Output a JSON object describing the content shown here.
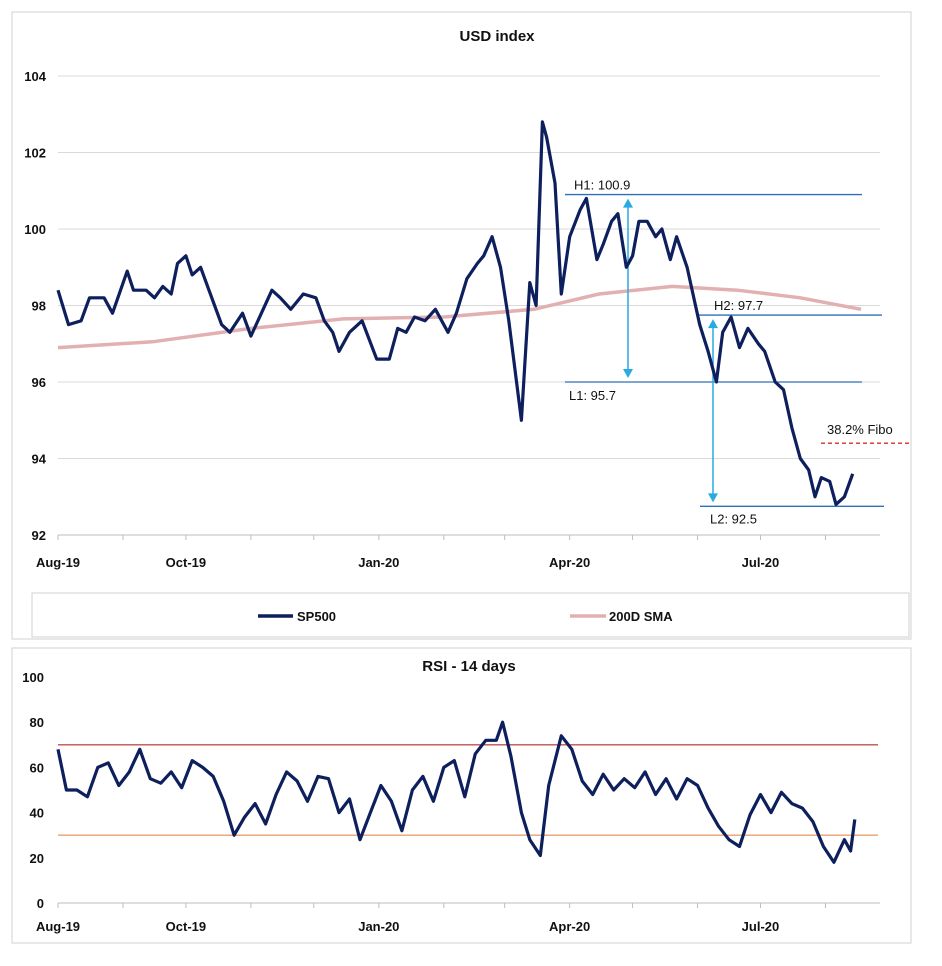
{
  "chart_data": [
    {
      "type": "line",
      "title": "USD index",
      "x_labels": [
        "Aug-19",
        "Oct-19",
        "Jan-20",
        "Apr-20",
        "Jul-20"
      ],
      "ylim": [
        92,
        104
      ],
      "y_ticks": [
        "92",
        "94",
        "96",
        "98",
        "100",
        "102",
        "104"
      ],
      "grid": true,
      "legend_position": "bottom",
      "series": [
        {
          "name": "SP500",
          "color": "#0d1f5c",
          "points": [
            [
              "2019-08-01",
              98.4
            ],
            [
              "2019-08-06",
              97.5
            ],
            [
              "2019-08-12",
              97.6
            ],
            [
              "2019-08-16",
              98.2
            ],
            [
              "2019-08-23",
              98.2
            ],
            [
              "2019-08-27",
              97.8
            ],
            [
              "2019-09-03",
              98.9
            ],
            [
              "2019-09-06",
              98.4
            ],
            [
              "2019-09-12",
              98.4
            ],
            [
              "2019-09-16",
              98.2
            ],
            [
              "2019-09-20",
              98.5
            ],
            [
              "2019-09-24",
              98.3
            ],
            [
              "2019-09-27",
              99.1
            ],
            [
              "2019-10-01",
              99.3
            ],
            [
              "2019-10-04",
              98.8
            ],
            [
              "2019-10-08",
              99.0
            ],
            [
              "2019-10-14",
              98.1
            ],
            [
              "2019-10-18",
              97.5
            ],
            [
              "2019-10-22",
              97.3
            ],
            [
              "2019-10-28",
              97.8
            ],
            [
              "2019-11-01",
              97.2
            ],
            [
              "2019-11-06",
              97.8
            ],
            [
              "2019-11-11",
              98.4
            ],
            [
              "2019-11-15",
              98.2
            ],
            [
              "2019-11-20",
              97.9
            ],
            [
              "2019-11-26",
              98.3
            ],
            [
              "2019-12-02",
              98.2
            ],
            [
              "2019-12-06",
              97.6
            ],
            [
              "2019-12-10",
              97.3
            ],
            [
              "2019-12-13",
              96.8
            ],
            [
              "2019-12-18",
              97.3
            ],
            [
              "2019-12-24",
              97.6
            ],
            [
              "2019-12-31",
              96.6
            ],
            [
              "2020-01-06",
              96.6
            ],
            [
              "2020-01-10",
              97.4
            ],
            [
              "2020-01-14",
              97.3
            ],
            [
              "2020-01-18",
              97.7
            ],
            [
              "2020-01-23",
              97.6
            ],
            [
              "2020-01-28",
              97.9
            ],
            [
              "2020-02-03",
              97.3
            ],
            [
              "2020-02-07",
              97.8
            ],
            [
              "2020-02-12",
              98.7
            ],
            [
              "2020-02-17",
              99.1
            ],
            [
              "2020-02-20",
              99.3
            ],
            [
              "2020-02-24",
              99.8
            ],
            [
              "2020-02-28",
              99.0
            ],
            [
              "2020-03-03",
              97.6
            ],
            [
              "2020-03-09",
              95.0
            ],
            [
              "2020-03-13",
              98.6
            ],
            [
              "2020-03-16",
              98.0
            ],
            [
              "2020-03-19",
              102.8
            ],
            [
              "2020-03-21",
              102.4
            ],
            [
              "2020-03-25",
              101.2
            ],
            [
              "2020-03-28",
              98.3
            ],
            [
              "2020-04-01",
              99.8
            ],
            [
              "2020-04-06",
              100.5
            ],
            [
              "2020-04-09",
              100.8
            ],
            [
              "2020-04-14",
              99.2
            ],
            [
              "2020-04-17",
              99.6
            ],
            [
              "2020-04-21",
              100.2
            ],
            [
              "2020-04-24",
              100.4
            ],
            [
              "2020-04-28",
              99.0
            ],
            [
              "2020-05-01",
              99.3
            ],
            [
              "2020-05-04",
              100.2
            ],
            [
              "2020-05-08",
              100.2
            ],
            [
              "2020-05-12",
              99.8
            ],
            [
              "2020-05-15",
              100.0
            ],
            [
              "2020-05-19",
              99.2
            ],
            [
              "2020-05-22",
              99.8
            ],
            [
              "2020-05-27",
              99.0
            ],
            [
              "2020-06-02",
              97.5
            ],
            [
              "2020-06-06",
              96.8
            ],
            [
              "2020-06-10",
              96.0
            ],
            [
              "2020-06-13",
              97.3
            ],
            [
              "2020-06-17",
              97.7
            ],
            [
              "2020-06-21",
              96.9
            ],
            [
              "2020-06-25",
              97.4
            ],
            [
              "2020-06-30",
              97.0
            ],
            [
              "2020-07-03",
              96.8
            ],
            [
              "2020-07-08",
              96.0
            ],
            [
              "2020-07-12",
              95.8
            ],
            [
              "2020-07-16",
              94.8
            ],
            [
              "2020-07-20",
              94.0
            ],
            [
              "2020-07-24",
              93.7
            ],
            [
              "2020-07-27",
              93.0
            ],
            [
              "2020-07-30",
              93.5
            ],
            [
              "2020-08-03",
              93.4
            ],
            [
              "2020-08-06",
              92.8
            ],
            [
              "2020-08-10",
              93.0
            ],
            [
              "2020-08-14",
              93.6
            ]
          ]
        },
        {
          "name": "200D SMA",
          "color": "#e2b0b0",
          "points": [
            [
              "2019-08-01",
              96.9
            ],
            [
              "2019-09-15",
              97.05
            ],
            [
              "2019-11-01",
              97.4
            ],
            [
              "2019-12-15",
              97.65
            ],
            [
              "2020-02-01",
              97.7
            ],
            [
              "2020-03-15",
              97.9
            ],
            [
              "2020-04-15",
              98.3
            ],
            [
              "2020-05-20",
              98.5
            ],
            [
              "2020-06-20",
              98.4
            ],
            [
              "2020-07-20",
              98.2
            ],
            [
              "2020-08-18",
              97.9
            ]
          ]
        }
      ],
      "annotations": [
        {
          "label": "H1: 100.9",
          "value": 100.9
        },
        {
          "label": "L1: 95.7",
          "value": 96.0
        },
        {
          "label": "H2: 97.7",
          "value": 97.75
        },
        {
          "label": "L2: 92.5",
          "value": 92.75
        },
        {
          "label": "38.2% Fibo",
          "value": 94.4
        }
      ]
    },
    {
      "type": "line",
      "title": "RSI - 14 days",
      "x_labels": [
        "Aug-19",
        "Oct-19",
        "Jan-20",
        "Apr-20",
        "Jul-20"
      ],
      "ylim": [
        0,
        100
      ],
      "y_ticks": [
        "0",
        "20",
        "40",
        "60",
        "80",
        "100"
      ],
      "grid": false,
      "reference_lines": [
        {
          "value": 70,
          "color": "#c0504d"
        },
        {
          "value": 30,
          "color": "#e8a070"
        }
      ],
      "series": [
        {
          "color": "#0d1f5c",
          "points": [
            [
              "2019-08-01",
              68
            ],
            [
              "2019-08-05",
              50
            ],
            [
              "2019-08-10",
              50
            ],
            [
              "2019-08-15",
              47
            ],
            [
              "2019-08-20",
              60
            ],
            [
              "2019-08-25",
              62
            ],
            [
              "2019-08-30",
              52
            ],
            [
              "2019-09-04",
              58
            ],
            [
              "2019-09-09",
              68
            ],
            [
              "2019-09-14",
              55
            ],
            [
              "2019-09-19",
              53
            ],
            [
              "2019-09-24",
              58
            ],
            [
              "2019-09-29",
              51
            ],
            [
              "2019-10-04",
              63
            ],
            [
              "2019-10-09",
              60
            ],
            [
              "2019-10-14",
              56
            ],
            [
              "2019-10-19",
              45
            ],
            [
              "2019-10-24",
              30
            ],
            [
              "2019-10-29",
              38
            ],
            [
              "2019-11-03",
              44
            ],
            [
              "2019-11-08",
              35
            ],
            [
              "2019-11-13",
              48
            ],
            [
              "2019-11-18",
              58
            ],
            [
              "2019-11-23",
              54
            ],
            [
              "2019-11-28",
              45
            ],
            [
              "2019-12-03",
              56
            ],
            [
              "2019-12-08",
              55
            ],
            [
              "2019-12-13",
              40
            ],
            [
              "2019-12-18",
              46
            ],
            [
              "2019-12-23",
              28
            ],
            [
              "2019-12-28",
              40
            ],
            [
              "2020-01-02",
              52
            ],
            [
              "2020-01-07",
              45
            ],
            [
              "2020-01-12",
              32
            ],
            [
              "2020-01-17",
              50
            ],
            [
              "2020-01-22",
              56
            ],
            [
              "2020-01-27",
              45
            ],
            [
              "2020-02-01",
              60
            ],
            [
              "2020-02-06",
              63
            ],
            [
              "2020-02-11",
              47
            ],
            [
              "2020-02-16",
              66
            ],
            [
              "2020-02-21",
              72
            ],
            [
              "2020-02-26",
              72
            ],
            [
              "2020-02-29",
              80
            ],
            [
              "2020-03-04",
              65
            ],
            [
              "2020-03-09",
              40
            ],
            [
              "2020-03-13",
              28
            ],
            [
              "2020-03-18",
              21
            ],
            [
              "2020-03-22",
              52
            ],
            [
              "2020-03-28",
              74
            ],
            [
              "2020-04-02",
              68
            ],
            [
              "2020-04-07",
              54
            ],
            [
              "2020-04-12",
              48
            ],
            [
              "2020-04-17",
              57
            ],
            [
              "2020-04-22",
              50
            ],
            [
              "2020-04-27",
              55
            ],
            [
              "2020-05-02",
              51
            ],
            [
              "2020-05-07",
              58
            ],
            [
              "2020-05-12",
              48
            ],
            [
              "2020-05-17",
              55
            ],
            [
              "2020-05-22",
              46
            ],
            [
              "2020-05-27",
              55
            ],
            [
              "2020-06-01",
              52
            ],
            [
              "2020-06-06",
              42
            ],
            [
              "2020-06-11",
              34
            ],
            [
              "2020-06-16",
              28
            ],
            [
              "2020-06-21",
              25
            ],
            [
              "2020-06-26",
              39
            ],
            [
              "2020-07-01",
              48
            ],
            [
              "2020-07-06",
              40
            ],
            [
              "2020-07-11",
              49
            ],
            [
              "2020-07-16",
              44
            ],
            [
              "2020-07-21",
              42
            ],
            [
              "2020-07-26",
              36
            ],
            [
              "2020-07-31",
              25
            ],
            [
              "2020-08-05",
              18
            ],
            [
              "2020-08-10",
              28
            ],
            [
              "2020-08-13",
              23
            ],
            [
              "2020-08-15",
              37
            ]
          ]
        }
      ]
    }
  ]
}
